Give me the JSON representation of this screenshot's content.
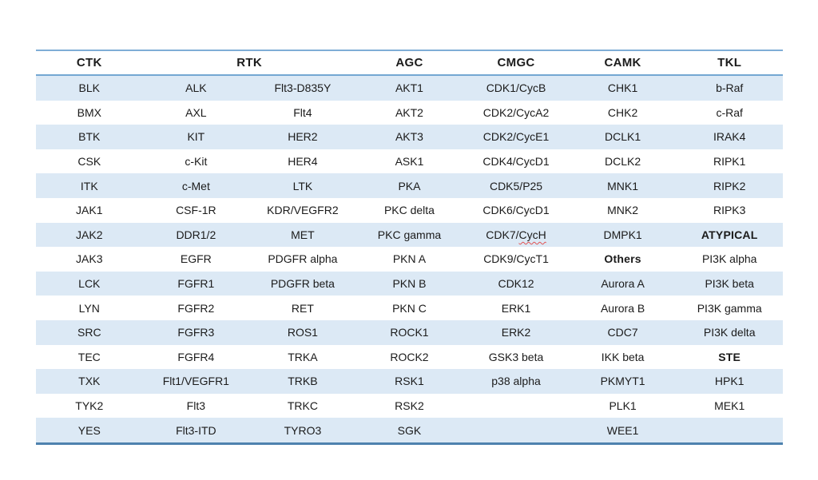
{
  "table": {
    "header": [
      {
        "label": "CTK",
        "span": 1
      },
      {
        "label": "RTK",
        "span": 2
      },
      {
        "label": "AGC",
        "span": 1
      },
      {
        "label": "CMGC",
        "span": 1
      },
      {
        "label": "CAMK",
        "span": 1
      },
      {
        "label": "TKL",
        "span": 1
      }
    ],
    "rows": [
      [
        "BLK",
        "ALK",
        "Flt3-D835Y",
        "AKT1",
        "CDK1/CycB",
        "CHK1",
        "b-Raf"
      ],
      [
        "BMX",
        "AXL",
        "Flt4",
        "AKT2",
        "CDK2/CycA2",
        "CHK2",
        "c-Raf"
      ],
      [
        "BTK",
        "KIT",
        "HER2",
        "AKT3",
        "CDK2/CycE1",
        "DCLK1",
        "IRAK4"
      ],
      [
        "CSK",
        "c-Kit",
        "HER4",
        "ASK1",
        "CDK4/CycD1",
        "DCLK2",
        "RIPK1"
      ],
      [
        "ITK",
        "c-Met",
        "LTK",
        "PKA",
        "CDK5/P25",
        "MNK1",
        "RIPK2"
      ],
      [
        "JAK1",
        "CSF-1R",
        "KDR/VEGFR2",
        "PKC delta",
        "CDK6/CycD1",
        "MNK2",
        "RIPK3"
      ],
      [
        "JAK2",
        "DDR1/2",
        "MET",
        "PKC gamma",
        "CDK7/CycH",
        "DMPK1",
        "ATYPICAL"
      ],
      [
        "JAK3",
        "EGFR",
        "PDGFR alpha",
        "PKN A",
        "CDK9/CycT1",
        "Others",
        "PI3K alpha"
      ],
      [
        "LCK",
        "FGFR1",
        "PDGFR beta",
        "PKN B",
        "CDK12",
        "Aurora A",
        "PI3K beta"
      ],
      [
        "LYN",
        "FGFR2",
        "RET",
        "PKN C",
        "ERK1",
        "Aurora B",
        "PI3K gamma"
      ],
      [
        "SRC",
        "FGFR3",
        "ROS1",
        "ROCK1",
        "ERK2",
        "CDC7",
        "PI3K delta"
      ],
      [
        "TEC",
        "FGFR4",
        "TRKA",
        "ROCK2",
        "GSK3 beta",
        "IKK beta",
        "STE"
      ],
      [
        "TXK",
        "Flt1/VEGFR1",
        "TRKB",
        "RSK1",
        "p38 alpha",
        "PKMYT1",
        "HPK1"
      ],
      [
        "TYK2",
        "Flt3",
        "TRKC",
        "RSK2",
        "",
        "PLK1",
        "MEK1"
      ],
      [
        "YES",
        "Flt3-ITD",
        "TYRO3",
        "SGK",
        "",
        "WEE1",
        ""
      ]
    ],
    "bold_cells": [
      "ATYPICAL",
      "Others",
      "STE"
    ],
    "small_cells": [
      "PLK1"
    ],
    "spellcheck_cell": {
      "text": "CDK7/CycH",
      "before": "CDK7/",
      "underlined": "CycH"
    },
    "colors": {
      "row_alt_fill": "#dce9f5",
      "row_fill": "#ffffff",
      "top_border": "#7fadd6",
      "header_border": "#74a7d2",
      "bottom_border": "#4e82ae",
      "text": "#1b1b1b",
      "squiggle": "#e05252"
    }
  }
}
